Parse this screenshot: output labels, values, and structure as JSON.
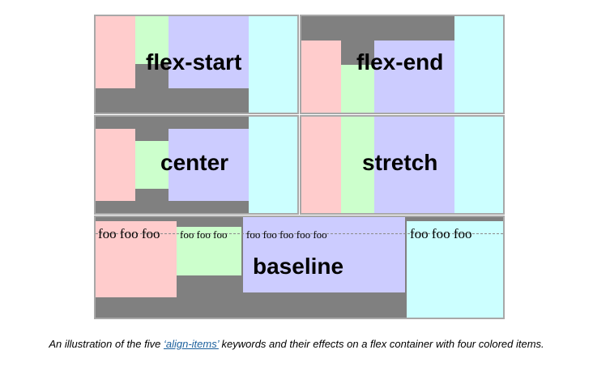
{
  "panels": {
    "flex_start": {
      "label": "flex-start"
    },
    "flex_end": {
      "label": "flex-end"
    },
    "center": {
      "label": "center"
    },
    "stretch": {
      "label": "stretch"
    },
    "baseline": {
      "label": "baseline",
      "texts": [
        "foo foo foo",
        "foo foo foo",
        "foo foo foo foo foo",
        "foo foo foo"
      ]
    }
  },
  "caption": {
    "before": "An illustration of the five ",
    "link": "‘align-items’",
    "after": " keywords and their effects on a flex container with four colored items."
  },
  "colors": {
    "container": "#808080",
    "item1": "#ffcccc",
    "item2": "#ccffcc",
    "item3": "#ccccff",
    "item4": "#ccffff"
  }
}
